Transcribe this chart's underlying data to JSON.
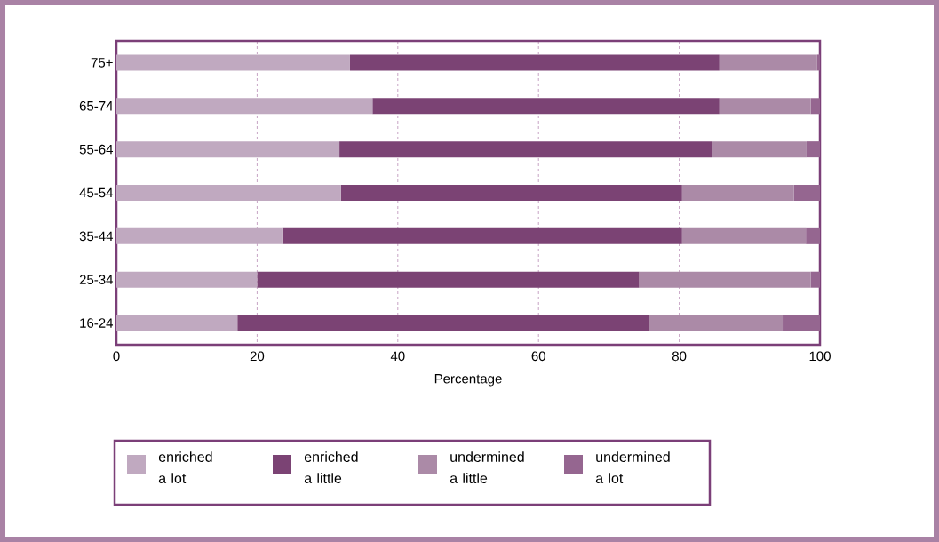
{
  "chart_data": {
    "type": "bar",
    "orientation": "horizontal",
    "stacked": true,
    "categories": [
      "75+",
      "65-74",
      "55-64",
      "45-54",
      "35-44",
      "25-34",
      "16-24"
    ],
    "series": [
      {
        "name": "enriched a lot",
        "color": "#c0a9c0",
        "values": [
          33.2,
          36.4,
          31.7,
          31.9,
          23.7,
          20.0,
          17.2
        ]
      },
      {
        "name": "enriched a little",
        "color": "#7b4374",
        "values": [
          52.5,
          49.3,
          52.9,
          48.5,
          56.7,
          54.3,
          58.5
        ]
      },
      {
        "name": "undermined a little",
        "color": "#ab8aa7",
        "values": [
          13.9,
          13.0,
          13.5,
          15.9,
          17.6,
          24.4,
          19.0
        ]
      },
      {
        "name": "undermined a lot",
        "color": "#956690",
        "values": [
          0.4,
          1.3,
          1.9,
          3.7,
          2.0,
          1.3,
          5.3
        ]
      }
    ],
    "xlim": [
      0,
      100
    ],
    "xticks": [
      0,
      20,
      40,
      60,
      80,
      100
    ],
    "xlabel": "Percentage",
    "grid": "x",
    "legend": "bottom"
  }
}
